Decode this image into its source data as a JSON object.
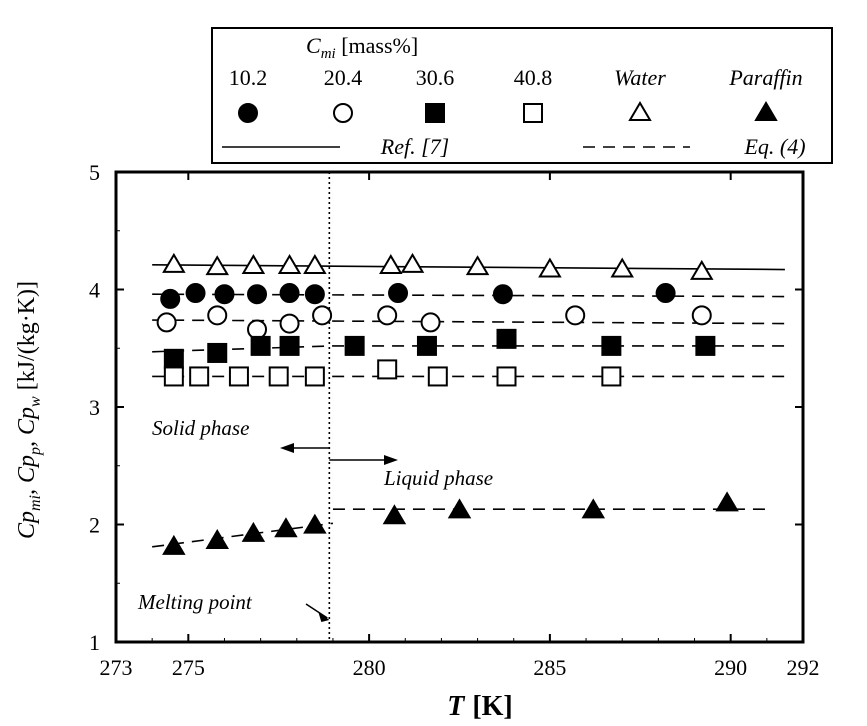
{
  "chart_data": {
    "type": "scatter",
    "xlabel_symbol": "T",
    "xlabel_unit": "[K]",
    "ylabel_parts": [
      "Cp",
      "mi",
      ", Cp",
      "p",
      ", Cp",
      "w",
      " [kJ/(kg·K)]"
    ],
    "xlim": [
      273,
      292
    ],
    "ylim": [
      1,
      5
    ],
    "x_ticks": [
      273,
      275,
      280,
      285,
      290,
      292
    ],
    "y_ticks": [
      1,
      2,
      3,
      4,
      5
    ],
    "legend": {
      "title_symbol": "C",
      "title_sub": "mi",
      "title_rest": " [mass%]",
      "entries": [
        {
          "label": "10.2",
          "marker": "filled-circle"
        },
        {
          "label": "20.4",
          "marker": "open-circle"
        },
        {
          "label": "30.6",
          "marker": "filled-square"
        },
        {
          "label": "40.8",
          "marker": "open-square"
        },
        {
          "label": "Water",
          "marker": "open-triangle"
        },
        {
          "label": "Paraffin",
          "marker": "filled-triangle"
        }
      ],
      "lines": [
        {
          "label": "Ref. [7]",
          "style": "solid"
        },
        {
          "label": "Eq. (4)",
          "style": "dashed"
        }
      ]
    },
    "series": [
      {
        "name": "Water",
        "marker": "open-triangle",
        "x": [
          274.6,
          275.8,
          276.8,
          277.8,
          278.5,
          280.6,
          281.2,
          283.0,
          285.0,
          287.0,
          289.2
        ],
        "y": [
          4.21,
          4.19,
          4.2,
          4.2,
          4.2,
          4.2,
          4.21,
          4.19,
          4.17,
          4.17,
          4.15
        ]
      },
      {
        "name": "10.2",
        "marker": "filled-circle",
        "x": [
          274.5,
          275.2,
          276.0,
          276.9,
          277.8,
          278.5,
          280.8,
          283.7,
          288.2
        ],
        "y": [
          3.92,
          3.97,
          3.96,
          3.96,
          3.97,
          3.96,
          3.97,
          3.96,
          3.97
        ]
      },
      {
        "name": "20.4",
        "marker": "open-circle",
        "x": [
          274.4,
          275.8,
          276.9,
          277.8,
          278.7,
          280.5,
          281.7,
          285.7,
          289.2
        ],
        "y": [
          3.72,
          3.78,
          3.66,
          3.71,
          3.78,
          3.78,
          3.72,
          3.78,
          3.78
        ]
      },
      {
        "name": "30.6",
        "marker": "filled-square",
        "x": [
          274.6,
          275.8,
          277.0,
          277.8,
          279.6,
          281.6,
          283.8,
          286.7,
          289.3
        ],
        "y": [
          3.41,
          3.46,
          3.52,
          3.52,
          3.52,
          3.52,
          3.58,
          3.52,
          3.52
        ]
      },
      {
        "name": "40.8",
        "marker": "open-square",
        "x": [
          274.6,
          275.3,
          276.4,
          277.5,
          278.5,
          280.5,
          281.9,
          283.8,
          286.7
        ],
        "y": [
          3.26,
          3.26,
          3.26,
          3.26,
          3.26,
          3.32,
          3.26,
          3.26,
          3.26
        ]
      },
      {
        "name": "Paraffin",
        "marker": "filled-triangle",
        "x": [
          274.6,
          275.8,
          276.8,
          277.7,
          278.5,
          280.7,
          282.5,
          286.2,
          289.9
        ],
        "y": [
          1.81,
          1.86,
          1.92,
          1.96,
          1.99,
          2.07,
          2.12,
          2.12,
          2.18
        ]
      }
    ],
    "lines": [
      {
        "style": "solid",
        "x": [
          274.0,
          291.5
        ],
        "y": [
          4.21,
          4.17
        ]
      },
      {
        "style": "dashed",
        "x": [
          274.0,
          291.5
        ],
        "y": [
          3.96,
          3.94
        ]
      },
      {
        "style": "dashed",
        "x": [
          274.0,
          291.5
        ],
        "y": [
          3.74,
          3.71
        ]
      },
      {
        "style": "dashed",
        "x": [
          274.0,
          279.0,
          291.5
        ],
        "y": [
          3.47,
          3.52,
          3.52
        ]
      },
      {
        "style": "dashed",
        "x": [
          274.0,
          291.5
        ],
        "y": [
          3.26,
          3.26
        ]
      },
      {
        "style": "dashed",
        "x": [
          274.0,
          279.0
        ],
        "y": [
          1.81,
          2.01
        ]
      },
      {
        "style": "dashed",
        "x": [
          279.0,
          291.0
        ],
        "y": [
          2.13,
          2.13
        ]
      }
    ],
    "melting_point_x": 278.9,
    "annotations": {
      "solid_phase": "Solid phase",
      "liquid_phase": "Liquid phase",
      "melting_point": "Melting point"
    }
  }
}
